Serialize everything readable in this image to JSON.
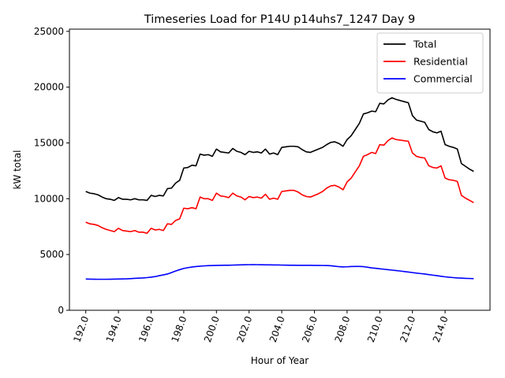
{
  "chart_data": {
    "type": "line",
    "title": "Timeseries Load for P14U p14uhs7_1247  Day 9",
    "xlabel": "Hour of Year",
    "ylabel": "kW total",
    "xlim": [
      191.0,
      216.75
    ],
    "ylim": [
      0,
      25200
    ],
    "x_ticks": [
      192,
      194,
      196,
      198,
      200,
      202,
      204,
      206,
      208,
      210,
      212,
      214
    ],
    "x_tick_labels": [
      "192.0",
      "194.0",
      "196.0",
      "198.0",
      "200.0",
      "202.0",
      "204.0",
      "206.0",
      "208.0",
      "210.0",
      "212.0",
      "214.0"
    ],
    "y_ticks": [
      0,
      5000,
      10000,
      15000,
      20000,
      25000
    ],
    "y_tick_labels": [
      "0",
      "5000",
      "10000",
      "15000",
      "20000",
      "25000"
    ],
    "legend_position": "top-right",
    "x": [
      192.0,
      192.25,
      192.5,
      192.75,
      193.0,
      193.25,
      193.5,
      193.75,
      194.0,
      194.25,
      194.5,
      194.75,
      195.0,
      195.25,
      195.5,
      195.75,
      196.0,
      196.25,
      196.5,
      196.75,
      197.0,
      197.25,
      197.5,
      197.75,
      198.0,
      198.25,
      198.5,
      198.75,
      199.0,
      199.25,
      199.5,
      199.75,
      200.0,
      200.25,
      200.5,
      200.75,
      201.0,
      201.25,
      201.5,
      201.75,
      202.0,
      202.25,
      202.5,
      202.75,
      203.0,
      203.25,
      203.5,
      203.75,
      204.0,
      204.25,
      204.5,
      204.75,
      205.0,
      205.25,
      205.5,
      205.75,
      206.0,
      206.25,
      206.5,
      206.75,
      207.0,
      207.25,
      207.5,
      207.75,
      208.0,
      208.25,
      208.5,
      208.75,
      209.0,
      209.25,
      209.5,
      209.75,
      210.0,
      210.25,
      210.5,
      210.75,
      211.0,
      211.25,
      211.5,
      211.75,
      212.0,
      212.25,
      212.5,
      212.75,
      213.0,
      213.25,
      213.5,
      213.75,
      214.0,
      214.25,
      214.5,
      214.75,
      215.0,
      215.25,
      215.5,
      215.75
    ],
    "series": [
      {
        "name": "Total",
        "color": "#000000",
        "values": [
          10650,
          10500,
          10450,
          10350,
          10150,
          10000,
          9950,
          9850,
          10100,
          9950,
          9950,
          9900,
          10000,
          9900,
          9900,
          9850,
          10300,
          10200,
          10300,
          10250,
          10900,
          10950,
          11400,
          11650,
          12750,
          12800,
          13000,
          12950,
          14000,
          13900,
          13950,
          13800,
          14450,
          14200,
          14150,
          14100,
          14500,
          14250,
          14150,
          13950,
          14250,
          14150,
          14200,
          14100,
          14450,
          14000,
          14100,
          13950,
          14600,
          14650,
          14700,
          14700,
          14650,
          14400,
          14200,
          14150,
          14300,
          14450,
          14600,
          14850,
          15050,
          15100,
          14950,
          14700,
          15300,
          15650,
          16200,
          16750,
          17600,
          17700,
          17850,
          17800,
          18550,
          18500,
          18850,
          19050,
          18900,
          18800,
          18700,
          18600,
          17450,
          17050,
          16950,
          16850,
          16200,
          16000,
          15900,
          16050,
          14850,
          14700,
          14600,
          14450,
          13150,
          12900,
          12650,
          12450
        ]
      },
      {
        "name": "Residential",
        "color": "#ff0000",
        "values": [
          7900,
          7750,
          7700,
          7600,
          7400,
          7250,
          7150,
          7050,
          7350,
          7150,
          7100,
          7050,
          7150,
          7000,
          7000,
          6900,
          7350,
          7200,
          7250,
          7150,
          7750,
          7700,
          8050,
          8200,
          9150,
          9100,
          9200,
          9100,
          10150,
          10000,
          10000,
          9850,
          10500,
          10250,
          10200,
          10100,
          10500,
          10250,
          10150,
          9900,
          10200,
          10100,
          10150,
          10050,
          10400,
          9950,
          10050,
          9950,
          10650,
          10700,
          10750,
          10750,
          10600,
          10350,
          10200,
          10150,
          10300,
          10450,
          10650,
          10950,
          11150,
          11200,
          11050,
          10800,
          11500,
          11850,
          12400,
          12950,
          13800,
          13950,
          14150,
          14050,
          14850,
          14800,
          15200,
          15450,
          15300,
          15250,
          15200,
          15150,
          14100,
          13800,
          13700,
          13650,
          12950,
          12800,
          12750,
          12950,
          11850,
          11700,
          11650,
          11550,
          10300,
          10050,
          9850,
          9650
        ]
      },
      {
        "name": "Commercial",
        "color": "#0000ff",
        "values": [
          2800,
          2790,
          2785,
          2780,
          2780,
          2780,
          2785,
          2790,
          2800,
          2810,
          2820,
          2840,
          2860,
          2880,
          2900,
          2930,
          2970,
          3020,
          3100,
          3170,
          3250,
          3380,
          3520,
          3640,
          3750,
          3820,
          3880,
          3920,
          3950,
          3980,
          4000,
          4010,
          4020,
          4030,
          4035,
          4040,
          4050,
          4060,
          4070,
          4080,
          4085,
          4090,
          4085,
          4080,
          4075,
          4070,
          4065,
          4060,
          4050,
          4045,
          4040,
          4035,
          4030,
          4030,
          4030,
          4025,
          4020,
          4020,
          4015,
          4010,
          3990,
          3950,
          3910,
          3890,
          3900,
          3920,
          3930,
          3930,
          3910,
          3860,
          3800,
          3760,
          3720,
          3680,
          3640,
          3600,
          3560,
          3520,
          3470,
          3430,
          3380,
          3330,
          3290,
          3250,
          3200,
          3150,
          3100,
          3050,
          3000,
          2960,
          2930,
          2900,
          2880,
          2860,
          2850,
          2840
        ]
      }
    ]
  }
}
